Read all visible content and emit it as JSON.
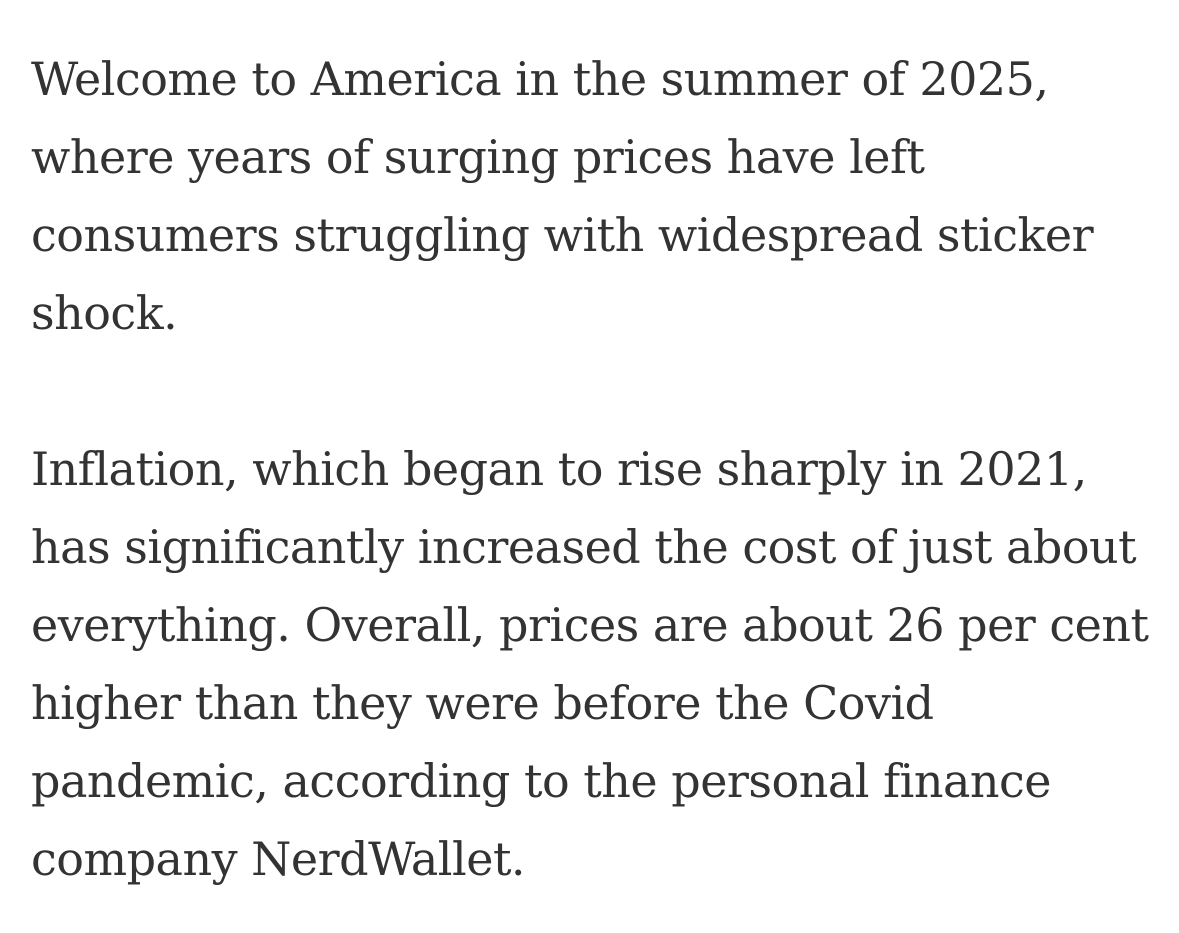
{
  "article": {
    "paragraphs": [
      "Welcome to America in the summer of 2025, where years of surging prices have left consumers struggling with widespread sticker shock.",
      "Inflation, which began to rise sharply in 2021, has significantly increased the cost of just about everything. Overall, prices are about 26 per cent higher than they were before the Covid pandemic, according to the personal finance company NerdWallet."
    ]
  }
}
